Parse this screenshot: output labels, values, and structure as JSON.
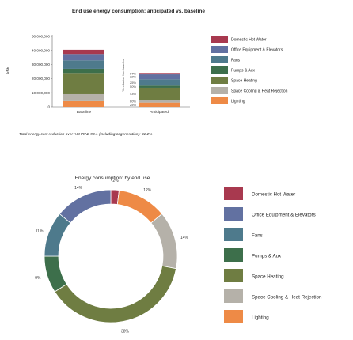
{
  "chart_data": [
    {
      "type": "bar",
      "title": "End use energy consumption: anticipated vs. baseline",
      "ylabel": "kBtu",
      "ylabel_right": "% reduction from baseline",
      "ylim": [
        0,
        50000000
      ],
      "yticks": [
        "50,000,000",
        "40,000,000",
        "30,000,000",
        "20,000,000",
        "10,000,000",
        "0"
      ],
      "ytick_values": [
        50000000,
        40000000,
        30000000,
        20000000,
        10000000,
        0
      ],
      "categories": [
        "Baseline",
        "Anticipated"
      ],
      "series": [
        {
          "name": "Lighting",
          "color": "#ee8a46",
          "values": [
            4000000,
            3000000
          ]
        },
        {
          "name": "Space Cooling & Heat Rejection",
          "color": "#b5b1a9",
          "values": [
            5000000,
            2000000
          ]
        },
        {
          "name": "Space Heating",
          "color": "#6f7d42",
          "values": [
            15000000,
            8500000
          ]
        },
        {
          "name": "Pumps & Aux",
          "color": "#3d6f4b",
          "values": [
            3000000,
            1500000
          ]
        },
        {
          "name": "Fans",
          "color": "#4e7a8c",
          "values": [
            6000000,
            4500000
          ]
        },
        {
          "name": "Office Equipment & Elevators",
          "color": "#6271a1",
          "values": [
            4500000,
            3500000
          ]
        },
        {
          "name": "Domestic Hot Water",
          "color": "#a8394f",
          "values": [
            3000000,
            1000000
          ]
        }
      ],
      "reduction_labels": [
        "25%",
        "60%",
        "43%",
        "50%",
        "25%",
        "22%",
        "67%"
      ],
      "note": "Total energy cost reduction over ASHRAE 90.1 (including cogeneration): 31.2%"
    },
    {
      "type": "pie",
      "title": "Energy consumption: by end use",
      "slices": [
        {
          "name": "Domestic Hot Water",
          "color": "#a8394f",
          "value": 2,
          "label": "2%"
        },
        {
          "name": "Lighting",
          "color": "#ee8a46",
          "value": 12,
          "label": "12%"
        },
        {
          "name": "Space Cooling & Heat Rejection",
          "color": "#b5b1a9",
          "value": 14,
          "label": "14%"
        },
        {
          "name": "Space Heating",
          "color": "#6f7d42",
          "value": 38,
          "label": "38%"
        },
        {
          "name": "Pumps & Aux",
          "color": "#3d6f4b",
          "value": 9,
          "label": "9%"
        },
        {
          "name": "Fans",
          "color": "#4e7a8c",
          "value": 11,
          "label": "11%"
        },
        {
          "name": "Office Equipment & Elevators",
          "color": "#6271a1",
          "value": 14,
          "label": "14%"
        }
      ],
      "legend": [
        {
          "name": "Domestic Hot Water",
          "color": "#a8394f"
        },
        {
          "name": "Office Equipment & Elevators",
          "color": "#6271a1"
        },
        {
          "name": "Fans",
          "color": "#4e7a8c"
        },
        {
          "name": "Pumps & Aux",
          "color": "#3d6f4b"
        },
        {
          "name": "Space Heating",
          "color": "#6f7d42"
        },
        {
          "name": "Space Cooling & Heat Rejection",
          "color": "#b5b1a9"
        },
        {
          "name": "Lighting",
          "color": "#ee8a46"
        }
      ]
    }
  ]
}
